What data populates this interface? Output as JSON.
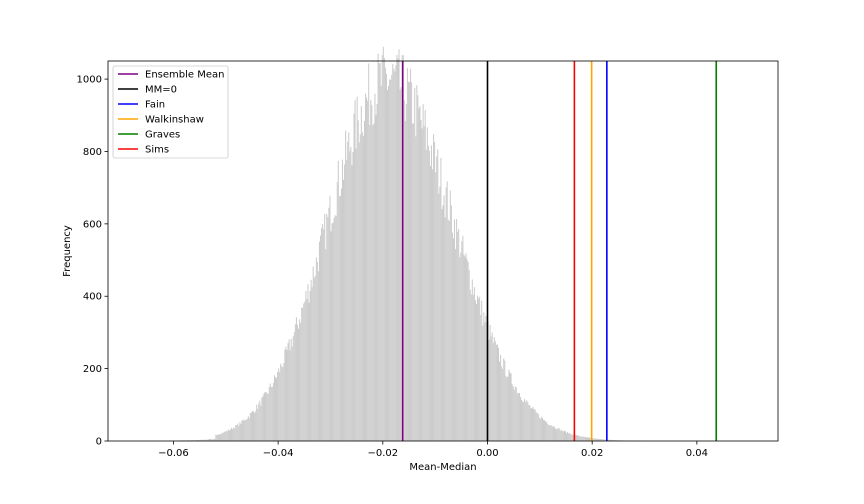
{
  "chart_data": {
    "type": "histogram",
    "xlabel": "Mean-Median",
    "ylabel": "Frequency",
    "xlim": [
      -0.0725,
      0.0555
    ],
    "ylim": [
      0,
      1050
    ],
    "xticks": [
      -0.06,
      -0.04,
      -0.02,
      0.0,
      0.02,
      0.04
    ],
    "xtick_labels": [
      "−0.06",
      "−0.04",
      "−0.02",
      "0.00",
      "0.02",
      "0.04"
    ],
    "yticks": [
      0,
      200,
      400,
      600,
      800,
      1000
    ],
    "ytick_labels": [
      "0",
      "200",
      "400",
      "600",
      "800",
      "1000"
    ],
    "histogram": {
      "color": "#cccccc",
      "range": [
        -0.062,
        0.05
      ],
      "peak_x": -0.019,
      "peak_value": 1000,
      "left_sigma": 0.0115,
      "right_sigma": 0.0125,
      "left_tail_start": -0.052,
      "right_tail_end": 0.048
    },
    "vertical_lines": [
      {
        "name": "Ensemble Mean",
        "x": -0.0162,
        "color": "#800080"
      },
      {
        "name": "MM=0",
        "x": 0.0,
        "color": "#000000"
      },
      {
        "name": "Fain",
        "x": 0.0228,
        "color": "#0000ff"
      },
      {
        "name": "Walkinshaw",
        "x": 0.0199,
        "color": "#ffa500"
      },
      {
        "name": "Graves",
        "x": 0.0437,
        "color": "#008000"
      },
      {
        "name": "Sims",
        "x": 0.0166,
        "color": "#ff0000"
      }
    ],
    "legend": {
      "placement": "top-left",
      "entries": [
        "Ensemble Mean",
        "MM=0",
        "Fain",
        "Walkinshaw",
        "Graves",
        "Sims"
      ]
    }
  }
}
